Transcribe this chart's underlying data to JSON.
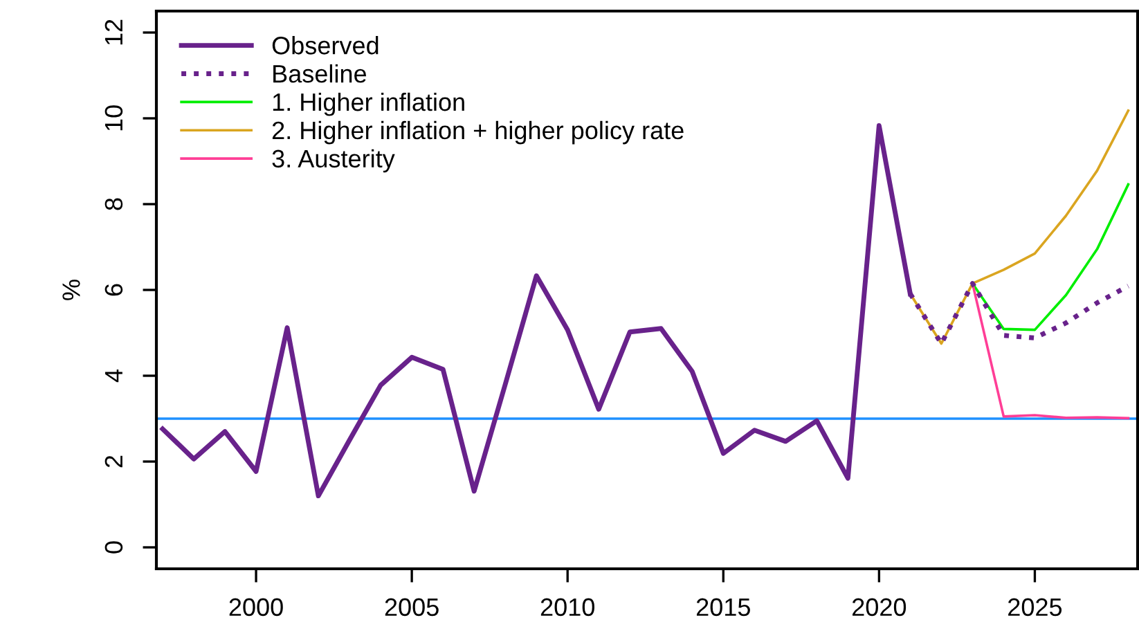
{
  "chart_data": {
    "type": "line",
    "ylabel": "%",
    "xlim": [
      1996.8,
      2028.3
    ],
    "xticks": [
      2000,
      2005,
      2010,
      2015,
      2020,
      2025
    ],
    "ylim": [
      -0.5,
      12.5
    ],
    "yticks": [
      0,
      2,
      4,
      6,
      8,
      10,
      12
    ],
    "grid": false,
    "legend": "top left",
    "marker": "none",
    "ref_lines": [
      {
        "axis": "y",
        "value": 3,
        "color": "#1e90ff"
      }
    ],
    "series": [
      {
        "name": "Observed",
        "color": "#68228b",
        "line_style": "solid",
        "x": [
          1997,
          1998,
          1999,
          2000,
          2001,
          2002,
          2003,
          2004,
          2005,
          2006,
          2007,
          2008,
          2009,
          2010,
          2011,
          2012,
          2013,
          2014,
          2015,
          2016,
          2017,
          2018,
          2019,
          2020,
          2021
        ],
        "values": [
          2.76,
          2.06,
          2.7,
          1.77,
          5.12,
          1.2,
          2.5,
          3.78,
          4.43,
          4.15,
          1.31,
          3.8,
          6.33,
          5.07,
          3.22,
          5.02,
          5.1,
          4.1,
          2.19,
          2.73,
          2.47,
          2.95,
          1.61,
          9.83,
          5.91
        ]
      },
      {
        "name": "Baseline",
        "color": "#68228b",
        "line_style": "dotted",
        "x": [
          2021,
          2022,
          2023,
          2024,
          2025,
          2026,
          2027,
          2028
        ],
        "values": [
          5.91,
          4.75,
          6.15,
          4.94,
          4.88,
          5.23,
          5.7,
          6.09
        ]
      },
      {
        "name": "1. Higher inflation",
        "color": "#00ee00",
        "line_style": "solid",
        "x": [
          2023,
          2024,
          2025,
          2026,
          2027,
          2028
        ],
        "values": [
          6.15,
          5.09,
          5.07,
          5.88,
          6.95,
          8.46
        ]
      },
      {
        "name": "2. Higher inflation + higher policy rate",
        "color": "#daa520",
        "line_style": "solid",
        "x": [
          2021,
          2022,
          2023,
          2024,
          2025,
          2026,
          2027,
          2028
        ],
        "values": [
          5.91,
          4.75,
          6.15,
          6.47,
          6.85,
          7.73,
          8.78,
          10.18
        ]
      },
      {
        "name": "3. Austerity",
        "color": "#ff3e96",
        "line_style": "solid",
        "x": [
          2023,
          2024,
          2025,
          2026,
          2027,
          2028
        ],
        "values": [
          6.15,
          3.05,
          3.08,
          3.02,
          3.03,
          3.01
        ]
      }
    ]
  }
}
